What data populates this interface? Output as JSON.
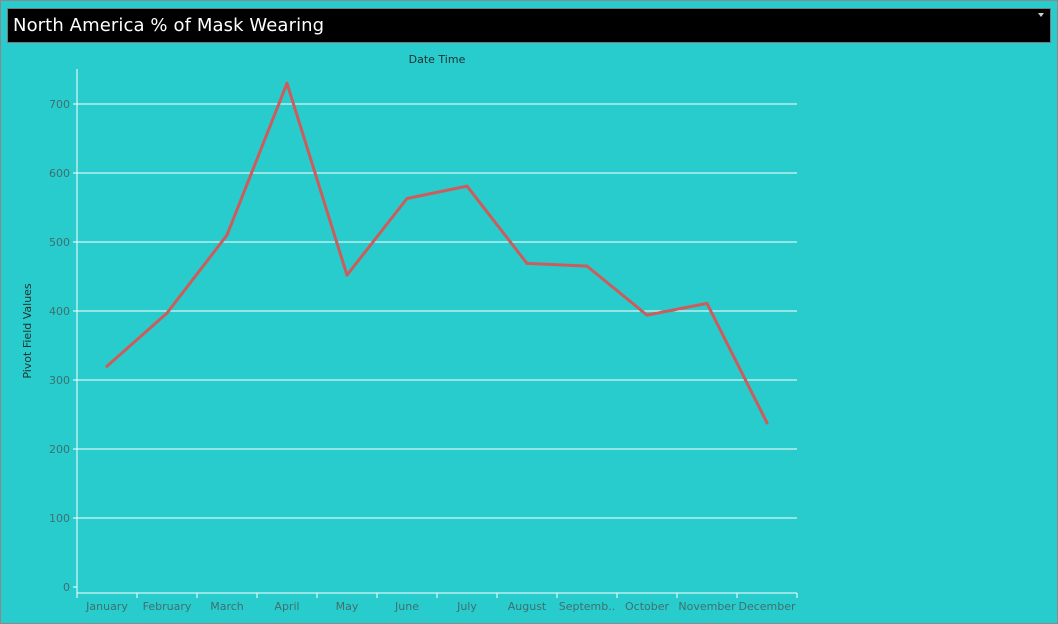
{
  "colors": {
    "background": "#29CCCC",
    "title_bar": "#000000",
    "title_text": "#FFFFFF",
    "line": "#CD5C5C",
    "gridline": "#FFFFFF",
    "tick_text": "#3F6F6F"
  },
  "header": {
    "title": "North America % of Mask Wearing",
    "menu_icon": "chevron-down-icon"
  },
  "chart_data": {
    "type": "line",
    "title": "North America % of Mask Wearing",
    "top_label": "Date Time",
    "xlabel": "",
    "ylabel": "Pivot Field Values",
    "categories": [
      "January",
      "February",
      "March",
      "April",
      "May",
      "June",
      "July",
      "August",
      "Septemb..",
      "October",
      "November",
      "December"
    ],
    "series": [
      {
        "values": [
          320,
          397,
          510,
          730,
          452,
          563,
          581,
          469,
          465,
          394,
          411,
          238
        ]
      }
    ],
    "ylim": [
      0,
      770
    ],
    "yticks": [
      0,
      100,
      200,
      300,
      400,
      500,
      600,
      700
    ],
    "grid": true,
    "legend": "none"
  }
}
